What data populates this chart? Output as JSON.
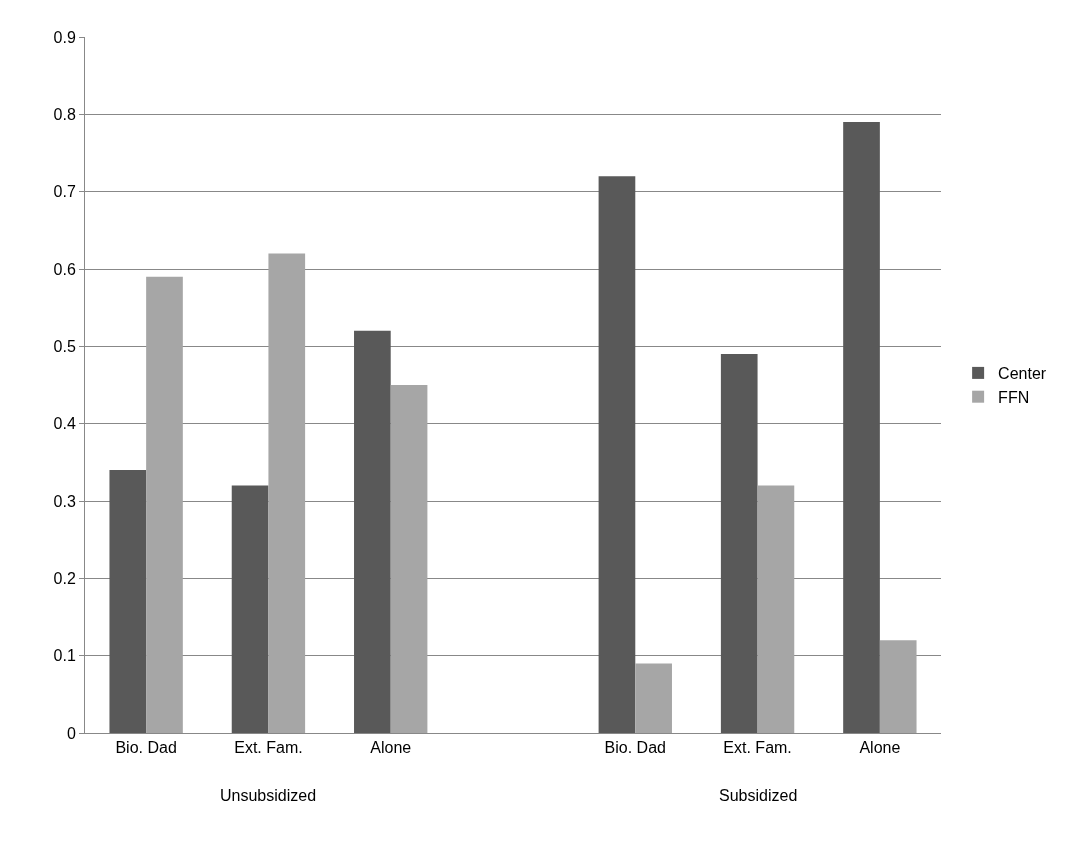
{
  "chart_data": {
    "type": "bar",
    "categories": [
      "Bio. Dad",
      "Ext. Fam.",
      "Alone",
      null,
      "Bio. Dad",
      "Ext. Fam.",
      "Alone"
    ],
    "series": [
      {
        "name": "Center",
        "color": "#595959",
        "values": [
          0.34,
          0.32,
          0.52,
          null,
          0.72,
          0.49,
          0.79
        ]
      },
      {
        "name": "FFN",
        "color": "#a6a6a6",
        "values": [
          0.59,
          0.62,
          0.45,
          null,
          0.09,
          0.32,
          0.12
        ]
      }
    ],
    "annotations": [
      "Unsubsidized",
      "Subsidized"
    ],
    "ylim": [
      0,
      0.9
    ],
    "yticks": [
      0,
      0.1,
      0.2,
      0.3,
      0.4,
      0.5,
      0.6,
      0.7,
      0.8,
      0.9
    ],
    "grid": "y",
    "legend": "right"
  }
}
